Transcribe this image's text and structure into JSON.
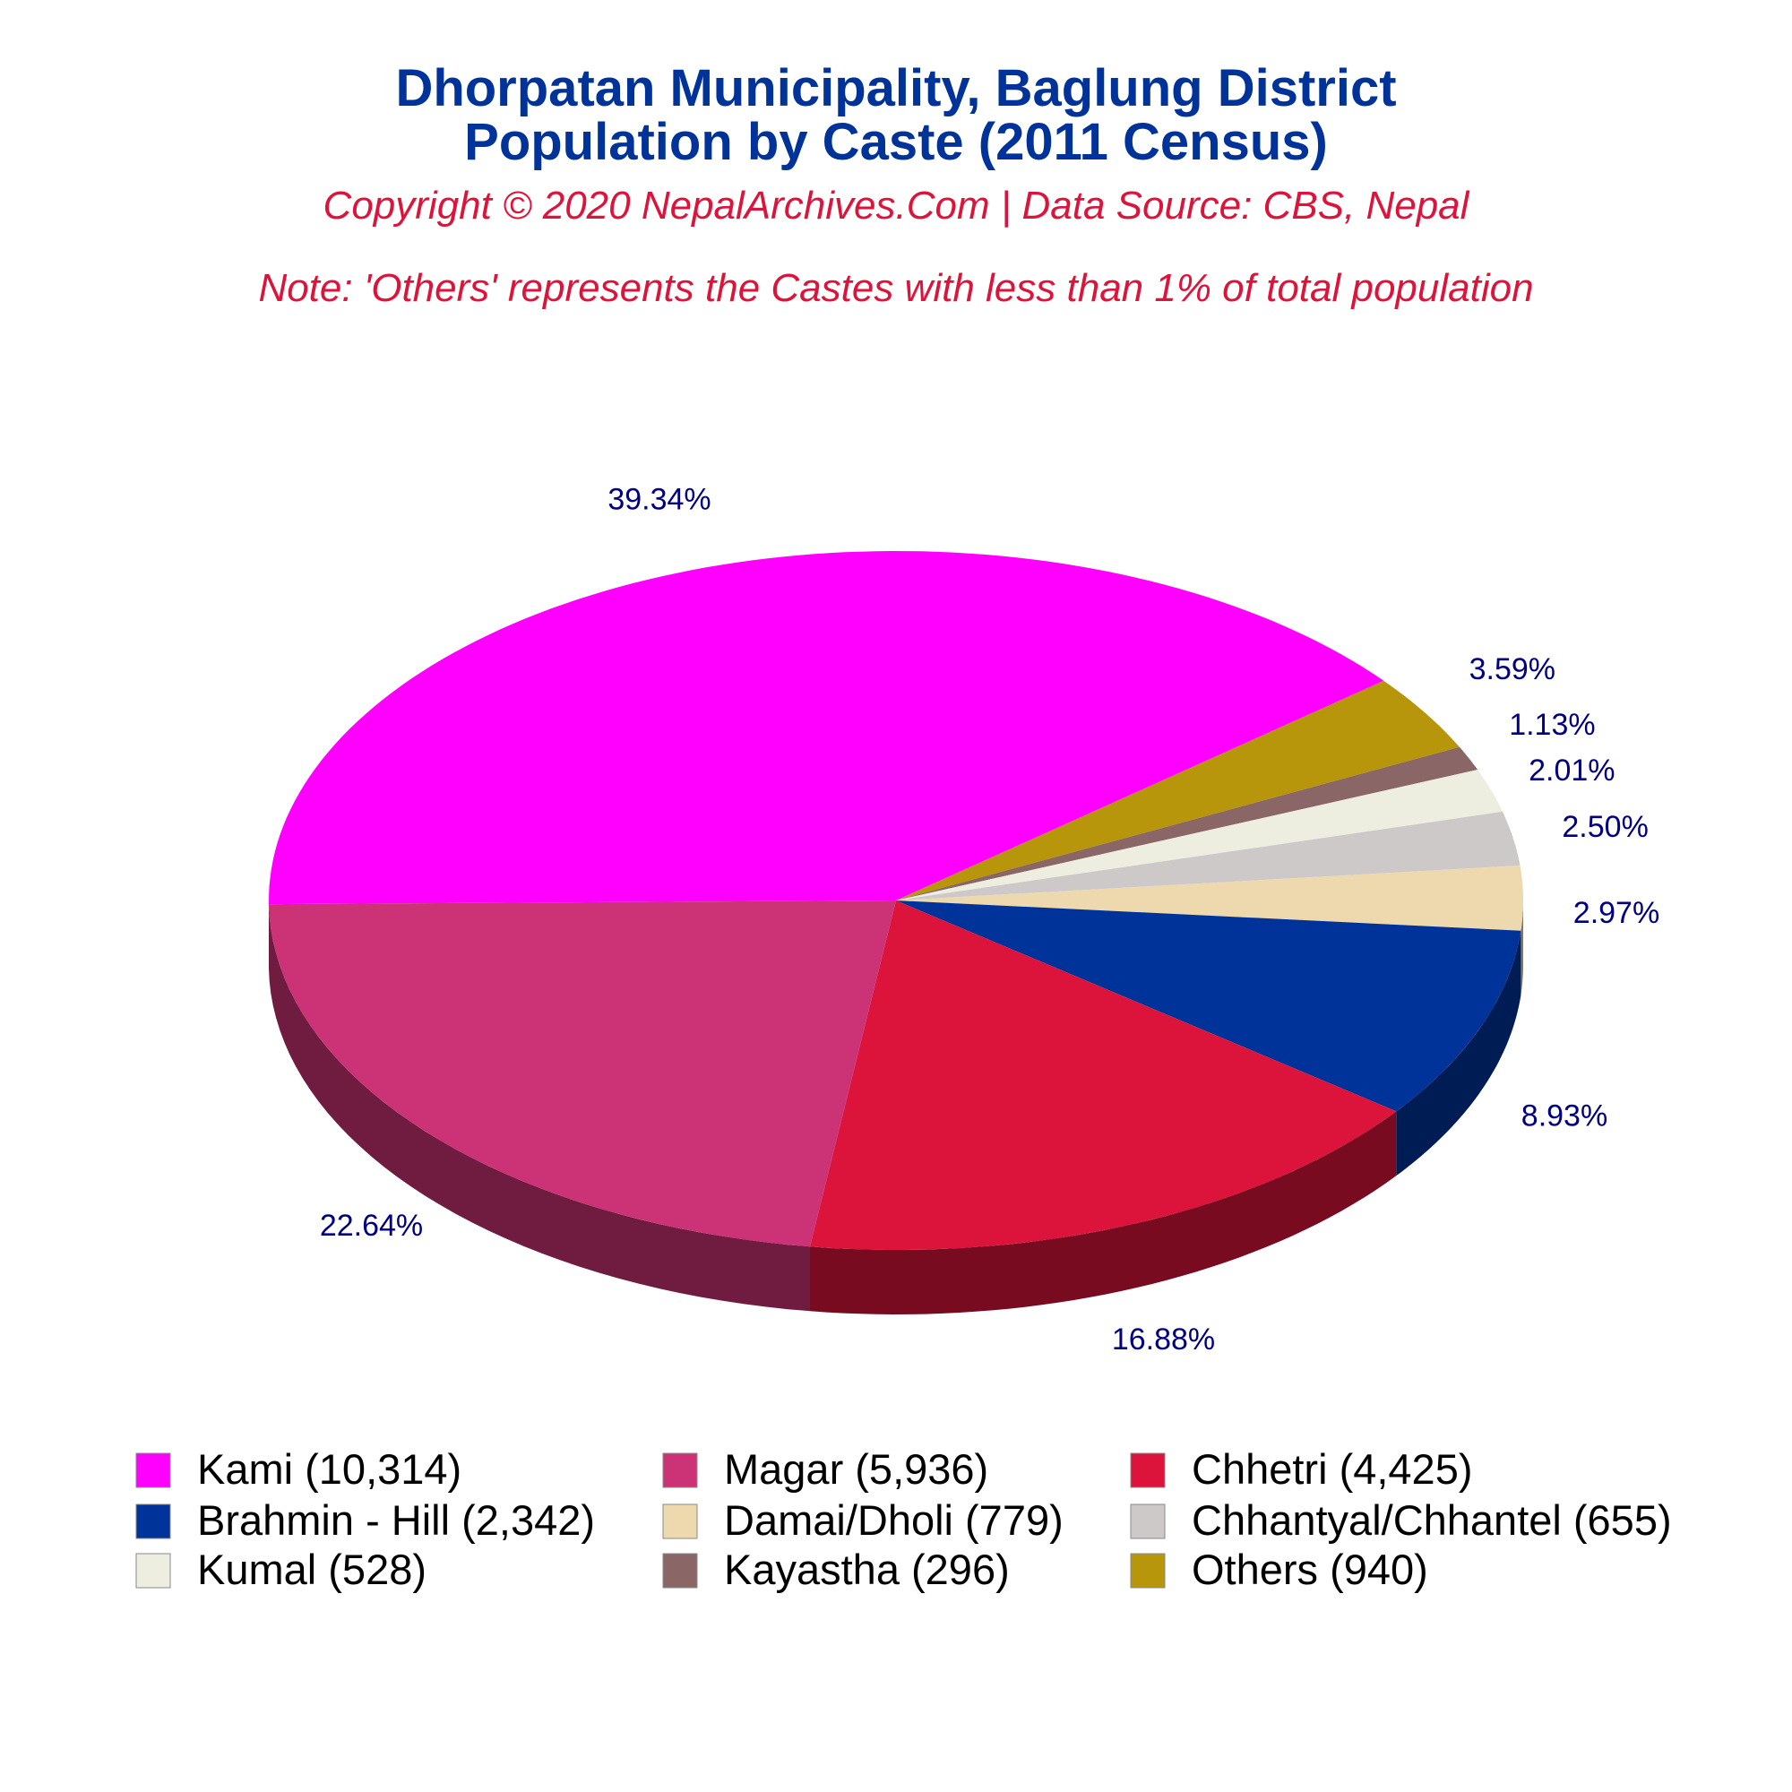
{
  "colors": {
    "title": "#003399",
    "subtitle": "#dc143c",
    "label": "#000080"
  },
  "header": {
    "title_line1": "Dhorpatan Municipality, Baglung District",
    "title_line2": "Population by Caste (2011 Census)",
    "copyright": "Copyright © 2020 NepalArchives.Com | Data Source: CBS, Nepal",
    "note": "Note: 'Others' represents the Castes with less than 1% of total population"
  },
  "chart_data": {
    "type": "pie",
    "style": "3d",
    "legend_position": "bottom",
    "slices": [
      {
        "name": "Kami",
        "value": 10314,
        "legend": "Kami (10,314)",
        "percent_label": "39.34%",
        "color": "#ff00ff"
      },
      {
        "name": "Others",
        "value": 940,
        "legend": "Others (940)",
        "percent_label": "3.59%",
        "color": "#b8960b"
      },
      {
        "name": "Kayastha",
        "value": 296,
        "legend": "Kayastha (296)",
        "percent_label": "1.13%",
        "color": "#8b6666"
      },
      {
        "name": "Kumal",
        "value": 528,
        "legend": "Kumal (528)",
        "percent_label": "2.01%",
        "color": "#eeeee0"
      },
      {
        "name": "Chhantyal/Chhantel",
        "value": 655,
        "legend": "Chhantyal/Chhantel (655)",
        "percent_label": "2.50%",
        "color": "#cdc9c9"
      },
      {
        "name": "Damai/Dholi",
        "value": 779,
        "legend": "Damai/Dholi (779)",
        "percent_label": "2.97%",
        "color": "#eed8ae"
      },
      {
        "name": "Brahmin - Hill",
        "value": 2342,
        "legend": "Brahmin - Hill (2,342)",
        "percent_label": "8.93%",
        "color": "#003399"
      },
      {
        "name": "Chhetri",
        "value": 4425,
        "legend": "Chhetri (4,425)",
        "percent_label": "16.88%",
        "color": "#dc143c"
      },
      {
        "name": "Magar",
        "value": 5936,
        "legend": "Magar (5,936)",
        "percent_label": "22.64%",
        "color": "#cc3377"
      }
    ],
    "legend_order": [
      "Kami",
      "Magar",
      "Chhetri",
      "Brahmin - Hill",
      "Damai/Dholi",
      "Chhantyal/Chhantel",
      "Kumal",
      "Kayastha",
      "Others"
    ]
  }
}
